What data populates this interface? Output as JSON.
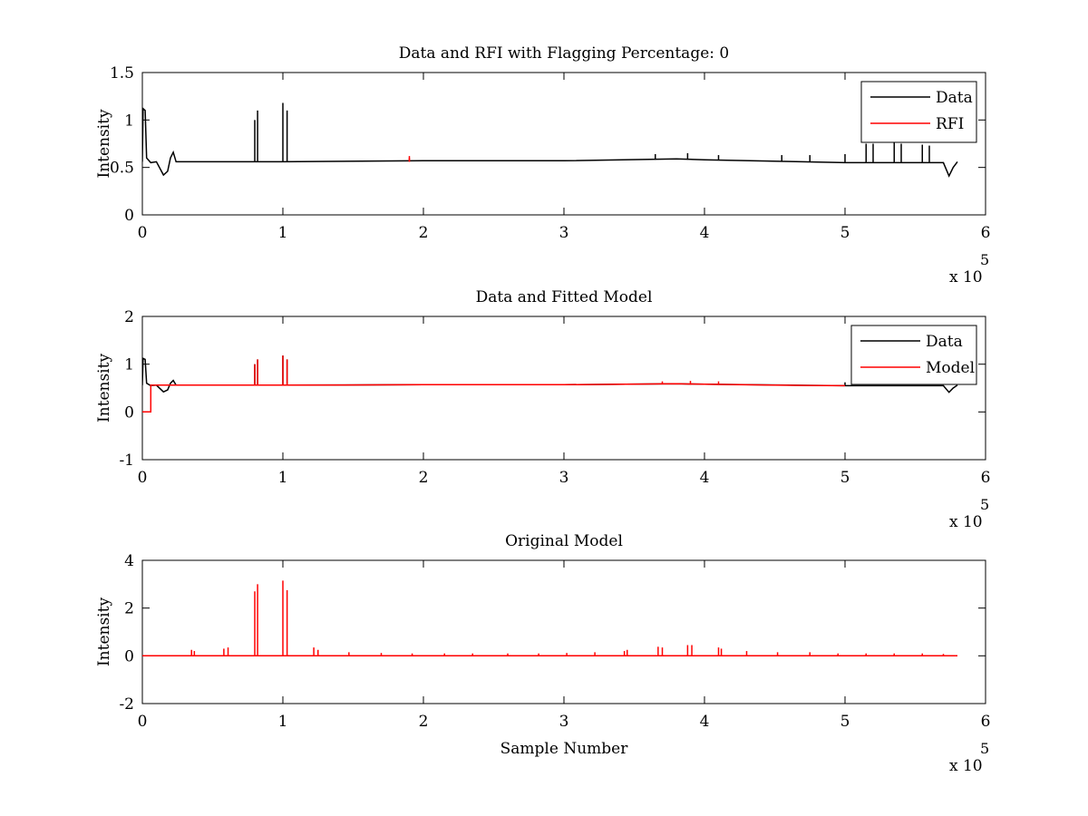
{
  "figure_background": "#ffffff",
  "chart_data": [
    {
      "id": "rfi",
      "type": "line",
      "title": "Data and RFI with Flagging Percentage: 0",
      "xlabel": "",
      "ylabel": "Intensity",
      "xlim": [
        0,
        6
      ],
      "ylim": [
        0,
        1.5
      ],
      "x_multiplier_label": "x 10",
      "x_multiplier_exponent": "5",
      "x_ticks": [
        0,
        1,
        2,
        3,
        4,
        5,
        6
      ],
      "y_ticks": [
        0,
        0.5,
        1,
        1.5
      ],
      "legend": {
        "location": "top-right",
        "entries": [
          {
            "label": "Data",
            "color": "#000000"
          },
          {
            "label": "RFI",
            "color": "#ff0000"
          }
        ]
      },
      "baseline": 0.56,
      "series": [
        {
          "name": "Data",
          "color": "#000000",
          "x": [
            0,
            0.005,
            0.02,
            0.03,
            0.06,
            0.1,
            0.15,
            0.18,
            0.2,
            0.22,
            0.24,
            1,
            2,
            3,
            3.8,
            4,
            5,
            5.7,
            5.74,
            5.77,
            5.8
          ],
          "y": [
            0.56,
            1.12,
            1.1,
            0.6,
            0.55,
            0.56,
            0.42,
            0.46,
            0.6,
            0.66,
            0.56,
            0.56,
            0.57,
            0.57,
            0.59,
            0.58,
            0.55,
            0.55,
            0.41,
            0.5,
            0.56
          ],
          "spikes": [
            [
              0.8,
              1.0
            ],
            [
              0.82,
              1.1
            ],
            [
              1.0,
              1.18
            ],
            [
              1.03,
              1.1
            ],
            [
              3.65,
              0.64
            ],
            [
              3.88,
              0.65
            ],
            [
              4.1,
              0.63
            ],
            [
              4.55,
              0.63
            ],
            [
              4.75,
              0.63
            ],
            [
              5.0,
              0.64
            ],
            [
              5.15,
              0.75
            ],
            [
              5.2,
              0.75
            ],
            [
              5.35,
              0.76
            ],
            [
              5.4,
              0.75
            ],
            [
              5.55,
              0.74
            ],
            [
              5.6,
              0.73
            ]
          ]
        },
        {
          "name": "RFI",
          "color": "#ff0000",
          "x": [
            1.9,
            1.9
          ],
          "y": [
            0.56,
            0.6
          ],
          "spikes": [
            [
              1.9,
              0.62
            ]
          ]
        }
      ]
    },
    {
      "id": "model",
      "type": "line",
      "title": "Data and Fitted Model",
      "xlabel": "",
      "ylabel": "Intensity",
      "xlim": [
        0,
        6
      ],
      "ylim": [
        -1,
        2
      ],
      "x_multiplier_label": "x 10",
      "x_multiplier_exponent": "5",
      "x_ticks": [
        0,
        1,
        2,
        3,
        4,
        5,
        6
      ],
      "y_ticks": [
        -1,
        0,
        1,
        2
      ],
      "legend": {
        "location": "top-right",
        "entries": [
          {
            "label": "Data",
            "color": "#000000"
          },
          {
            "label": "Model",
            "color": "#ff0000"
          }
        ]
      },
      "series": [
        {
          "name": "Data",
          "color": "#000000",
          "x": [
            0,
            0.005,
            0.02,
            0.03,
            0.06,
            0.1,
            0.15,
            0.18,
            0.2,
            0.22,
            0.24,
            1,
            2,
            3,
            3.8,
            4,
            5,
            5.7,
            5.74,
            5.77,
            5.8
          ],
          "y": [
            0.56,
            1.12,
            1.1,
            0.6,
            0.55,
            0.56,
            0.42,
            0.46,
            0.6,
            0.66,
            0.56,
            0.56,
            0.57,
            0.57,
            0.59,
            0.58,
            0.55,
            0.55,
            0.41,
            0.5,
            0.56
          ],
          "spikes": [
            [
              0.8,
              1.0
            ],
            [
              0.82,
              1.1
            ],
            [
              1.0,
              1.18
            ],
            [
              1.03,
              1.1
            ],
            [
              5.0,
              0.62
            ]
          ]
        },
        {
          "name": "Model",
          "color": "#ff0000",
          "x": [
            0,
            0.06,
            0.06,
            0.1,
            1,
            2,
            3,
            3.8,
            4,
            4.5,
            5
          ],
          "y": [
            0,
            0,
            0.56,
            0.56,
            0.56,
            0.57,
            0.57,
            0.59,
            0.58,
            0.56,
            0.55
          ],
          "spikes": [
            [
              0.8,
              1.0
            ],
            [
              0.82,
              1.1
            ],
            [
              1.0,
              1.18
            ],
            [
              1.03,
              1.1
            ],
            [
              3.7,
              0.64
            ],
            [
              3.9,
              0.65
            ],
            [
              4.1,
              0.64
            ]
          ]
        }
      ]
    },
    {
      "id": "original",
      "type": "line",
      "title": "Original Model",
      "xlabel": "Sample Number",
      "ylabel": "Intensity",
      "xlim": [
        0,
        6
      ],
      "ylim": [
        -2,
        4
      ],
      "x_multiplier_label": "x 10",
      "x_multiplier_exponent": "5",
      "x_ticks": [
        0,
        1,
        2,
        3,
        4,
        5,
        6
      ],
      "y_ticks": [
        -2,
        0,
        2,
        4
      ],
      "series": [
        {
          "color": "#ff0000",
          "x": [
            0,
            5.8
          ],
          "y": [
            0,
            0
          ],
          "spikes": [
            [
              0.35,
              0.25
            ],
            [
              0.37,
              0.2
            ],
            [
              0.58,
              0.3
            ],
            [
              0.61,
              0.35
            ],
            [
              0.8,
              2.7
            ],
            [
              0.82,
              3.0
            ],
            [
              1.0,
              3.15
            ],
            [
              1.03,
              2.75
            ],
            [
              1.22,
              0.35
            ],
            [
              1.25,
              0.25
            ],
            [
              1.47,
              0.15
            ],
            [
              1.7,
              0.12
            ],
            [
              1.92,
              0.1
            ],
            [
              2.15,
              0.1
            ],
            [
              2.35,
              0.1
            ],
            [
              2.6,
              0.1
            ],
            [
              2.82,
              0.1
            ],
            [
              3.02,
              0.12
            ],
            [
              3.22,
              0.15
            ],
            [
              3.43,
              0.2
            ],
            [
              3.45,
              0.25
            ],
            [
              3.67,
              0.38
            ],
            [
              3.7,
              0.35
            ],
            [
              3.88,
              0.45
            ],
            [
              3.91,
              0.45
            ],
            [
              4.1,
              0.35
            ],
            [
              4.12,
              0.3
            ],
            [
              4.3,
              0.2
            ],
            [
              4.52,
              0.15
            ],
            [
              4.75,
              0.15
            ],
            [
              4.95,
              0.1
            ],
            [
              5.15,
              0.1
            ],
            [
              5.35,
              0.1
            ],
            [
              5.55,
              0.1
            ],
            [
              5.7,
              0.08
            ]
          ]
        }
      ]
    }
  ]
}
